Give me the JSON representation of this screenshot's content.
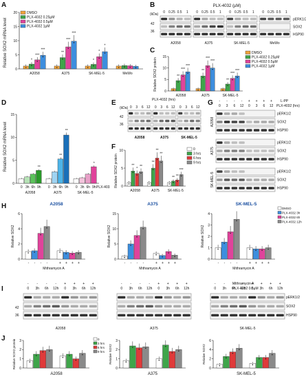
{
  "colors": {
    "dmso": "#f0a23a",
    "c025": "#3fa54a",
    "c05": "#e0439b",
    "c1": "#3d8ede",
    "red": "#e03a3a",
    "gray": "#8a8a8a",
    "white": "#ffffff",
    "blue": "#3d8ede",
    "pink": "#e0439b"
  },
  "A": {
    "label": "A",
    "ylabel": "Relative SOX2 mRNA level",
    "legend": [
      "DMSO",
      "PLX-4032 0.25µM",
      "PLX-4032 0.5µM",
      "PLX-4032 1µM"
    ],
    "yticks": [
      "0",
      "5",
      "10",
      "15",
      "20"
    ],
    "chart_data": {
      "type": "bar",
      "categories": [
        "A2058",
        "A375",
        "SK-MEL-5",
        "MeWo"
      ],
      "ylim": [
        0,
        20
      ],
      "series": [
        {
          "name": "DMSO",
          "values": [
            1,
            1,
            1,
            1
          ]
        },
        {
          "name": "PLX-4032 0.25µM",
          "values": [
            1.7,
            4,
            1.6,
            1.2
          ]
        },
        {
          "name": "PLX-4032 0.5µM",
          "values": [
            3.2,
            7.8,
            4.3,
            1.1
          ]
        },
        {
          "name": "PLX-4032 1µM",
          "values": [
            4.8,
            9.8,
            6.1,
            0.9
          ]
        }
      ],
      "stars": [
        "",
        "*",
        "***",
        "***",
        "",
        "**",
        "***",
        "***",
        "",
        "*",
        "*",
        "*",
        "",
        "",
        "",
        ""
      ]
    }
  },
  "B": {
    "label": "B",
    "title": "PLX-4032 (µM)",
    "kda": "(kDa)",
    "m1": "42",
    "m2": "36",
    "doses": [
      "0",
      "0.25",
      "0.5",
      "1"
    ],
    "cells": [
      "A2058",
      "A375",
      "SK-MEL-5",
      "MeWo"
    ],
    "rows": [
      "pERK1/2",
      "SOX2",
      "HSP90"
    ]
  },
  "C": {
    "label": "C",
    "ylabel": "Relative SOX2 protein",
    "legend": [
      "DMSO",
      "PLX-4032 0.25µM",
      "PLX-4032 0.5µM",
      "PLX-4032 1µM"
    ],
    "yticks": [
      "0",
      "5",
      "10",
      "15"
    ],
    "chart_data": {
      "type": "bar",
      "categories": [
        "A2058",
        "A375",
        "SK-MEL-5"
      ],
      "ylim": [
        0,
        15
      ],
      "series": [
        {
          "name": "DMSO",
          "values": [
            1,
            1,
            1
          ]
        },
        {
          "name": "PLX-4032 0.25µM",
          "values": [
            4.5,
            6.5,
            3
          ]
        },
        {
          "name": "PLX-4032 0.5µM",
          "values": [
            7,
            11,
            5.5
          ]
        },
        {
          "name": "PLX-4032 1µM",
          "values": [
            8.3,
            10,
            6.5
          ]
        }
      ],
      "stars": [
        "",
        "**",
        "***",
        "***",
        "",
        "**",
        "***",
        "***",
        "",
        "**",
        "***",
        "***"
      ]
    }
  },
  "D": {
    "label": "D",
    "ylabel": "Relative SOX2 mRNA level",
    "yticks": [
      "0",
      "5",
      "10",
      "15"
    ],
    "xt": [
      "0",
      "3h",
      "6h",
      "9h"
    ],
    "plx": "PLX-4032",
    "chart_data": {
      "type": "bar",
      "categories": [
        "A2058",
        "A375",
        "SK-MEL-5"
      ],
      "ylim": [
        0,
        15
      ],
      "series": [
        {
          "name": "0",
          "values": [
            1,
            1,
            1
          ]
        },
        {
          "name": "3h",
          "values": [
            1.4,
            2.5,
            1.2
          ]
        },
        {
          "name": "6h",
          "values": [
            2.0,
            5.3,
            2.0
          ]
        },
        {
          "name": "9h",
          "values": [
            2.8,
            10.5,
            3.6
          ]
        }
      ],
      "stars": [
        "",
        "",
        "",
        "**",
        "",
        "",
        "**",
        "**",
        "",
        "",
        "",
        "*"
      ]
    }
  },
  "E": {
    "label": "E",
    "title": "PLX-4032 (hrs)",
    "kda": "(kDa)",
    "m1": "42",
    "m2": "36",
    "times": [
      "0",
      "3",
      "6",
      "12"
    ],
    "cells": [
      "A2058",
      "A375",
      "SK-MEL-5"
    ],
    "rows": [
      "pERK1/2",
      "SOX2",
      "HSP90"
    ]
  },
  "F": {
    "label": "F",
    "ylabel": "Relative SOX2 protein",
    "yticks": [
      "0",
      "5",
      "10"
    ],
    "legend": [
      "0",
      "3 hrs",
      "6 hrs",
      "9 hrs"
    ],
    "chart_data": {
      "type": "bar",
      "categories": [
        "A2058",
        "A375",
        "SK-MEL-5"
      ],
      "ylim": [
        0,
        10
      ],
      "series": [
        {
          "name": "0",
          "values": [
            1,
            1,
            1
          ]
        },
        {
          "name": "3 hrs",
          "values": [
            4.2,
            5,
            1.4
          ]
        },
        {
          "name": "6 hrs",
          "values": [
            3.5,
            7.8,
            1.7
          ]
        },
        {
          "name": "9 hrs",
          "values": [
            4,
            7,
            3.2
          ]
        }
      ],
      "stars": [
        "",
        "**",
        "*",
        "**",
        "",
        "**",
        "**",
        "**",
        "",
        "**",
        "**",
        "***"
      ]
    }
  },
  "G": {
    "label": "G",
    "lpp": "L-PP",
    "plx": "PLX-4032 (hrs)",
    "times": [
      "0",
      "3",
      "6",
      "12"
    ],
    "cells": [
      "A2058",
      "A375",
      "SK-MEL-5"
    ],
    "rows": [
      "pERK1/2",
      "SOX2",
      "HSP90"
    ]
  },
  "H": {
    "label": "H",
    "subtitles": [
      "A2058",
      "A375",
      "SK-MEL-5"
    ],
    "ylabel": "Relative SOX2",
    "mith": "Mithramycin A",
    "legend": [
      "DMSO",
      "PLX-4032 3h",
      "PLX-4032 6h",
      "PLX-4032 12h"
    ],
    "yticks": [
      [
        "0",
        "2",
        "4",
        "6"
      ],
      [
        "0",
        "5",
        "10",
        "15"
      ],
      [
        "0",
        "1",
        "2",
        "3",
        "4"
      ]
    ],
    "chart_data": [
      {
        "type": "bar",
        "title": "A2058",
        "ylim": [
          0,
          6
        ],
        "categories": [
          "-",
          "+"
        ],
        "series": [
          {
            "name": "DMSO",
            "values": [
              1,
              1.1
            ]
          },
          {
            "name": "PLX-4032 3h",
            "values": [
              1.1,
              0.9
            ]
          },
          {
            "name": "PLX-4032 6h",
            "values": [
              3.4,
              0.8
            ]
          },
          {
            "name": "PLX-4032 12h",
            "values": [
              4.3,
              0.9
            ]
          }
        ]
      },
      {
        "type": "bar",
        "title": "A375",
        "ylim": [
          0,
          15
        ],
        "categories": [
          "-",
          "+"
        ],
        "series": [
          {
            "name": "DMSO",
            "values": [
              1,
              1.9
            ]
          },
          {
            "name": "PLX-4032 3h",
            "values": [
              5,
              1.2
            ]
          },
          {
            "name": "PLX-4032 6h",
            "values": [
              7.8,
              2.5
            ]
          },
          {
            "name": "PLX-4032 12h",
            "values": [
              10.5,
              1.3
            ]
          }
        ]
      },
      {
        "type": "bar",
        "title": "SK-MEL-5",
        "ylim": [
          0,
          4
        ],
        "categories": [
          "-",
          "+"
        ],
        "series": [
          {
            "name": "DMSO",
            "values": [
              1,
              1.0
            ]
          },
          {
            "name": "PLX-4032 3h",
            "values": [
              1.5,
              0.9
            ]
          },
          {
            "name": "PLX-4032 6h",
            "values": [
              2.4,
              0.9
            ]
          },
          {
            "name": "PLX-4032 12h",
            "values": [
              3.5,
              1.0
            ]
          }
        ]
      }
    ]
  },
  "I": {
    "label": "I",
    "mith": "Mithramycin A",
    "plx": "PLX-4032 0.5µM",
    "times": [
      "0",
      "3h",
      "6h",
      "12h"
    ],
    "cells": [
      "A2058",
      "A375",
      "SK-MEL-5"
    ],
    "rows": [
      "pERK1/2",
      "SOX2",
      "HSP90"
    ],
    "m1": "42",
    "m2": "36"
  },
  "J": {
    "label": "J",
    "ylabels": [
      "Relative SOX2 protein",
      "Relative SOX2",
      "Relative SOX2"
    ],
    "legend": [
      "0",
      "3 hrs",
      "6 hrs",
      "9 hrs"
    ],
    "yticks": [
      [
        "0",
        "1",
        "2",
        "3"
      ],
      [
        "0",
        "1",
        "2",
        "3"
      ],
      [
        "0",
        "2",
        "4",
        "6"
      ]
    ],
    "chart_data": [
      {
        "type": "bar",
        "title": "A2058",
        "ylim": [
          0,
          3
        ],
        "categories": [
          "-",
          "+"
        ],
        "series": [
          {
            "name": "0",
            "values": [
              0.8,
              1.3
            ]
          },
          {
            "name": "3 hrs",
            "values": [
              1.5,
              1.5
            ]
          },
          {
            "name": "6 hrs",
            "values": [
              1.9,
              1.0
            ]
          },
          {
            "name": "9 hrs",
            "values": [
              2.0,
              1.6
            ]
          }
        ]
      },
      {
        "type": "bar",
        "title": "A375",
        "ylim": [
          0,
          3
        ],
        "categories": [
          "-",
          "+"
        ],
        "series": [
          {
            "name": "0",
            "values": [
              0.8,
              1.0
            ]
          },
          {
            "name": "3 hrs",
            "values": [
              2.4,
              2.5
            ]
          },
          {
            "name": "6 hrs",
            "values": [
              2.2,
              1.8
            ]
          },
          {
            "name": "9 hrs",
            "values": [
              2.3,
              2.0
            ]
          }
        ]
      },
      {
        "type": "bar",
        "title": "SK-MEL-5",
        "ylim": [
          0,
          6
        ],
        "categories": [
          "-",
          "+"
        ],
        "series": [
          {
            "name": "0",
            "values": [
              0.8,
              1.0
            ]
          },
          {
            "name": "3 hrs",
            "values": [
              2.5,
              2.3
            ]
          },
          {
            "name": "6 hrs",
            "values": [
              3.5,
              2.3
            ]
          },
          {
            "name": "9 hrs",
            "values": [
              4.3,
              3.2
            ]
          }
        ]
      }
    ]
  }
}
